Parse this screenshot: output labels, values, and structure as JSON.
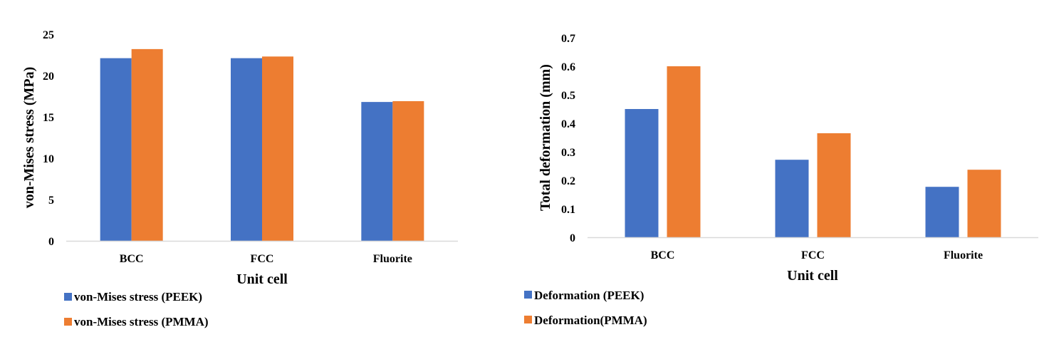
{
  "chart_data": [
    {
      "type": "bar",
      "title": "",
      "xlabel": "Unit cell",
      "ylabel": "von-Mises stress (MPa)",
      "categories": [
        "BCC",
        "FCC",
        "Fluorite"
      ],
      "ylim": [
        0,
        25
      ],
      "yticks": [
        0,
        5,
        10,
        15,
        20,
        25
      ],
      "ytick_labels": [
        "0",
        "5",
        "10",
        "15",
        "20",
        "25"
      ],
      "grid": false,
      "legend_position": "bottom-left",
      "series": [
        {
          "name": "von-Mises stress (PEEK)",
          "color": "#4472C4",
          "values": [
            22.1,
            22.1,
            16.8
          ]
        },
        {
          "name": "von-Mises stress (PMMA)",
          "color": "#ED7D31",
          "values": [
            23.2,
            22.3,
            16.9
          ]
        }
      ]
    },
    {
      "type": "bar",
      "title": "",
      "xlabel": "Unit cell",
      "ylabel": "Total deformation (mm)",
      "categories": [
        "BCC",
        "FCC",
        "Fluorite"
      ],
      "ylim": [
        0,
        0.7
      ],
      "yticks": [
        0,
        0.1,
        0.2,
        0.3,
        0.4,
        0.5,
        0.6,
        0.7
      ],
      "ytick_labels": [
        "0",
        "0.1",
        "0.2",
        "0.3",
        "0.4",
        "0.5",
        "0.6",
        "0.7"
      ],
      "grid": false,
      "legend_position": "bottom-left",
      "series": [
        {
          "name": "Deformation (PEEK)",
          "color": "#4472C4",
          "values": [
            0.45,
            0.272,
            0.177
          ]
        },
        {
          "name": "Deformation(PMMA)",
          "color": "#ED7D31",
          "values": [
            0.6,
            0.365,
            0.237
          ]
        }
      ]
    }
  ]
}
